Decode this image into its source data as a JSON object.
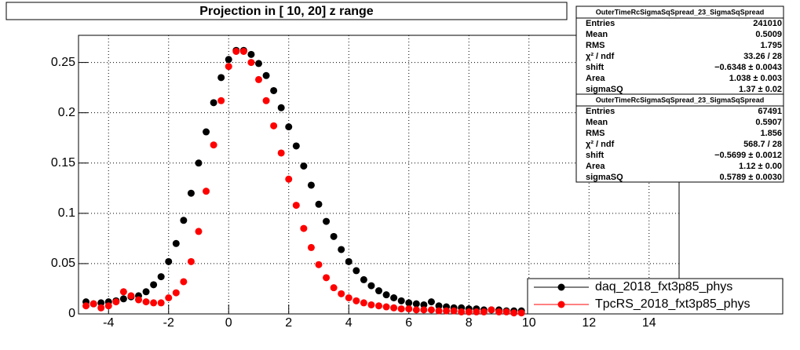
{
  "chart_data": {
    "type": "scatter",
    "title": "Projection in [  10,  20] z range",
    "x": [
      -4.75,
      -4.5,
      -4.25,
      -4,
      -3.75,
      -3.5,
      -3.25,
      -3,
      -2.75,
      -2.5,
      -2.25,
      -2,
      -1.75,
      -1.5,
      -1.25,
      -1,
      -0.75,
      -0.5,
      -0.25,
      0,
      0.25,
      0.5,
      0.75,
      1,
      1.25,
      1.5,
      1.75,
      2,
      2.25,
      2.5,
      2.75,
      3,
      3.25,
      3.5,
      3.75,
      4,
      4.25,
      4.5,
      4.75,
      5,
      5.25,
      5.5,
      5.75,
      6,
      6.25,
      6.5,
      6.75,
      7,
      7.25,
      7.5,
      7.75,
      8,
      8.25,
      8.5,
      8.75,
      9,
      9.25,
      9.5,
      9.75
    ],
    "series": [
      {
        "name": "daq_2018_fxt3p85_phys",
        "color": "#000000",
        "values": [
          0.012,
          0.01,
          0.011,
          0.012,
          0.013,
          0.015,
          0.017,
          0.018,
          0.022,
          0.029,
          0.037,
          0.052,
          0.07,
          0.093,
          0.12,
          0.15,
          0.181,
          0.21,
          0.235,
          0.253,
          0.262,
          0.262,
          0.258,
          0.249,
          0.237,
          0.222,
          0.205,
          0.186,
          0.167,
          0.147,
          0.128,
          0.109,
          0.092,
          0.077,
          0.064,
          0.052,
          0.043,
          0.034,
          0.028,
          0.023,
          0.019,
          0.016,
          0.013,
          0.011,
          0.01,
          0.009,
          0.012,
          0.008,
          0.007,
          0.006,
          0.006,
          0.005,
          0.005,
          0.004,
          0.004,
          0.004,
          0.003,
          0.003,
          0.003
        ]
      },
      {
        "name": "TpcRS_2018_fxt3p85_phys",
        "color": "#ff0000",
        "values": [
          0.008,
          0.01,
          0.006,
          0.008,
          0.012,
          0.022,
          0.018,
          0.014,
          0.012,
          0.011,
          0.011,
          0.016,
          0.021,
          0.032,
          0.052,
          0.082,
          0.122,
          0.168,
          0.212,
          0.246,
          0.261,
          0.261,
          0.25,
          0.233,
          0.212,
          0.187,
          0.16,
          0.134,
          0.108,
          0.085,
          0.066,
          0.049,
          0.036,
          0.026,
          0.02,
          0.016,
          0.013,
          0.011,
          0.009,
          0.008,
          0.007,
          0.006,
          0.005,
          0.005,
          0.004,
          0.004,
          0.004,
          0.003,
          0.003,
          0.003,
          0.002,
          0.002,
          0.002,
          0.002,
          0.004,
          0.002,
          0.002,
          0.001,
          0.001
        ]
      }
    ],
    "xlim": [
      -5,
      15
    ],
    "xticks": [
      -4,
      -2,
      0,
      2,
      4,
      6,
      8,
      10,
      12,
      14
    ],
    "ylim": [
      0,
      0.277
    ],
    "yticks": [
      0,
      0.05,
      0.1,
      0.15,
      0.2,
      0.25
    ],
    "grid": true,
    "legend": "lower right",
    "stats": [
      {
        "title": "OuterTimeRcSigmaSqSpread_23_SigmaSqSpread",
        "rows": [
          [
            "Entries",
            241010
          ],
          [
            "Mean",
            0.5009
          ],
          [
            "RMS",
            1.795
          ],
          [
            "χ² / ndf",
            "33.26 / 28"
          ],
          [
            "shift",
            "−0.6348 ± 0.0043"
          ],
          [
            "Area",
            "1.038 ± 0.003"
          ],
          [
            "sigmaSQ",
            "1.37 ± 0.02"
          ]
        ]
      },
      {
        "title": "OuterTimeRcSigmaSqSpread_23_SigmaSqSpread",
        "rows": [
          [
            "Entries",
            67491
          ],
          [
            "Mean",
            0.5907
          ],
          [
            "RMS",
            1.856
          ],
          [
            "χ² / ndf",
            "568.7 / 28"
          ],
          [
            "shift",
            "−0.5699 ± 0.0012"
          ],
          [
            "Area",
            "1.12 ± 0.00"
          ],
          [
            "sigmaSQ",
            "0.5789 ± 0.0030"
          ]
        ]
      }
    ]
  }
}
